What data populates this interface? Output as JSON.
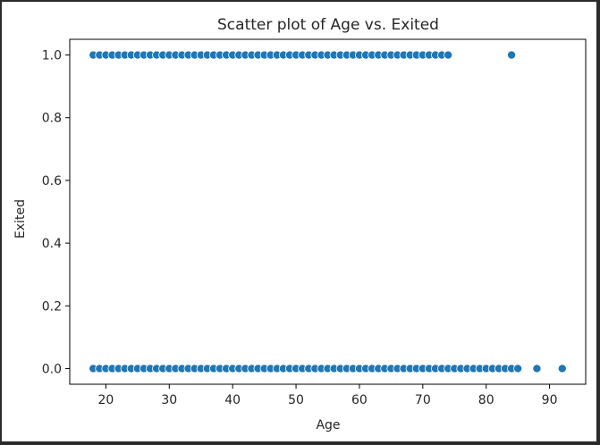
{
  "chart_data": {
    "type": "scatter",
    "title": "Scatter plot of Age vs. Exited",
    "xlabel": "Age",
    "ylabel": "Exited",
    "xlim": [
      14.3,
      95.7
    ],
    "ylim": [
      -0.05,
      1.05
    ],
    "x_ticks": [
      20,
      30,
      40,
      50,
      60,
      70,
      80,
      90
    ],
    "x_tick_labels": [
      "20",
      "30",
      "40",
      "50",
      "60",
      "70",
      "80",
      "90"
    ],
    "y_ticks": [
      0.0,
      0.2,
      0.4,
      0.6,
      0.8,
      1.0
    ],
    "y_tick_labels": [
      "0.0",
      "0.2",
      "0.4",
      "0.6",
      "0.8",
      "1.0"
    ],
    "grid": false,
    "point_color": "#1f77b4",
    "series": [
      {
        "x": [
          18,
          19,
          20,
          21,
          22,
          23,
          24,
          25,
          26,
          27,
          28,
          29,
          30,
          31,
          32,
          33,
          34,
          35,
          36,
          37,
          38,
          39,
          40,
          41,
          42,
          43,
          44,
          45,
          46,
          47,
          48,
          49,
          50,
          51,
          52,
          53,
          54,
          55,
          56,
          57,
          58,
          59,
          60,
          61,
          62,
          63,
          64,
          65,
          66,
          67,
          68,
          69,
          70,
          71,
          72,
          73,
          74,
          84
        ],
        "y": [
          1,
          1,
          1,
          1,
          1,
          1,
          1,
          1,
          1,
          1,
          1,
          1,
          1,
          1,
          1,
          1,
          1,
          1,
          1,
          1,
          1,
          1,
          1,
          1,
          1,
          1,
          1,
          1,
          1,
          1,
          1,
          1,
          1,
          1,
          1,
          1,
          1,
          1,
          1,
          1,
          1,
          1,
          1,
          1,
          1,
          1,
          1,
          1,
          1,
          1,
          1,
          1,
          1,
          1,
          1,
          1,
          1,
          1
        ]
      },
      {
        "x": [
          18,
          19,
          20,
          21,
          22,
          23,
          24,
          25,
          26,
          27,
          28,
          29,
          30,
          31,
          32,
          33,
          34,
          35,
          36,
          37,
          38,
          39,
          40,
          41,
          42,
          43,
          44,
          45,
          46,
          47,
          48,
          49,
          50,
          51,
          52,
          53,
          54,
          55,
          56,
          57,
          58,
          59,
          60,
          61,
          62,
          63,
          64,
          65,
          66,
          67,
          68,
          69,
          70,
          71,
          72,
          73,
          74,
          75,
          76,
          77,
          78,
          79,
          80,
          81,
          82,
          83,
          84,
          85,
          88,
          92
        ],
        "y": [
          0,
          0,
          0,
          0,
          0,
          0,
          0,
          0,
          0,
          0,
          0,
          0,
          0,
          0,
          0,
          0,
          0,
          0,
          0,
          0,
          0,
          0,
          0,
          0,
          0,
          0,
          0,
          0,
          0,
          0,
          0,
          0,
          0,
          0,
          0,
          0,
          0,
          0,
          0,
          0,
          0,
          0,
          0,
          0,
          0,
          0,
          0,
          0,
          0,
          0,
          0,
          0,
          0,
          0,
          0,
          0,
          0,
          0,
          0,
          0,
          0,
          0,
          0,
          0,
          0,
          0,
          0,
          0,
          0,
          0
        ]
      }
    ]
  }
}
